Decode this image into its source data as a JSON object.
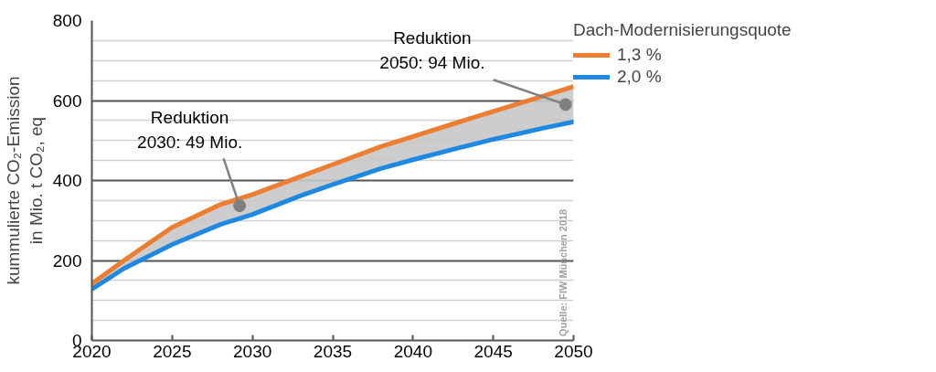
{
  "chart_data": {
    "type": "line",
    "xlabel": null,
    "ylabel": "kummulierte CO₂-Emission\nin Mio. t CO₂, eq",
    "legend_title": "Dach-Modernisierungsquote",
    "x": [
      2020,
      2022,
      2025,
      2028,
      2030,
      2033,
      2035,
      2038,
      2040,
      2043,
      2045,
      2048,
      2050
    ],
    "series": [
      {
        "name": "1,3 %",
        "color": "#ed7d31",
        "values": [
          142,
          200,
          283,
          340,
          365,
          410,
          440,
          485,
          510,
          548,
          573,
          610,
          635
        ],
        "lower": [
          128,
          180,
          240,
          290,
          315,
          362,
          390,
          430,
          452,
          483,
          503,
          530,
          547
        ],
        "upper": [
          142,
          200,
          283,
          340,
          365,
          410,
          440,
          485,
          510,
          548,
          573,
          610,
          635
        ]
      },
      {
        "name": "2,0 %",
        "color": "#1f88e0",
        "values": [
          128,
          180,
          240,
          290,
          315,
          362,
          390,
          430,
          452,
          483,
          503,
          530,
          547
        ]
      }
    ],
    "xlim": [
      2020,
      2050
    ],
    "xticks": [
      2020,
      2025,
      2030,
      2035,
      2040,
      2045,
      2050
    ],
    "ylim": [
      0,
      800
    ],
    "yticks": [
      0,
      {
        "value": 50,
        "label": null
      },
      {
        "value": 100,
        "label": null
      },
      {
        "value": 150,
        "label": null
      },
      200,
      {
        "value": 250,
        "label": null
      },
      {
        "value": 300,
        "label": null
      },
      {
        "value": 350,
        "label": null
      },
      400,
      {
        "value": 450,
        "label": null
      },
      {
        "value": 500,
        "label": null
      },
      {
        "value": 550,
        "label": null
      },
      600,
      {
        "value": 650,
        "label": null
      },
      {
        "value": 700,
        "label": null
      },
      {
        "value": 750,
        "label": null
      },
      800
    ],
    "grid": "y",
    "legend": "top right",
    "marker": "none",
    "line_style": "solid",
    "annotations": [
      {
        "text": "Reduktion\n2030: 49 Mio.",
        "x": 2029.2,
        "y": 337
      },
      {
        "text": "Reduktion\n2050: 94 Mio.",
        "x": 2049.5,
        "y": 590
      },
      "Quelle: FIW München 2018"
    ]
  }
}
